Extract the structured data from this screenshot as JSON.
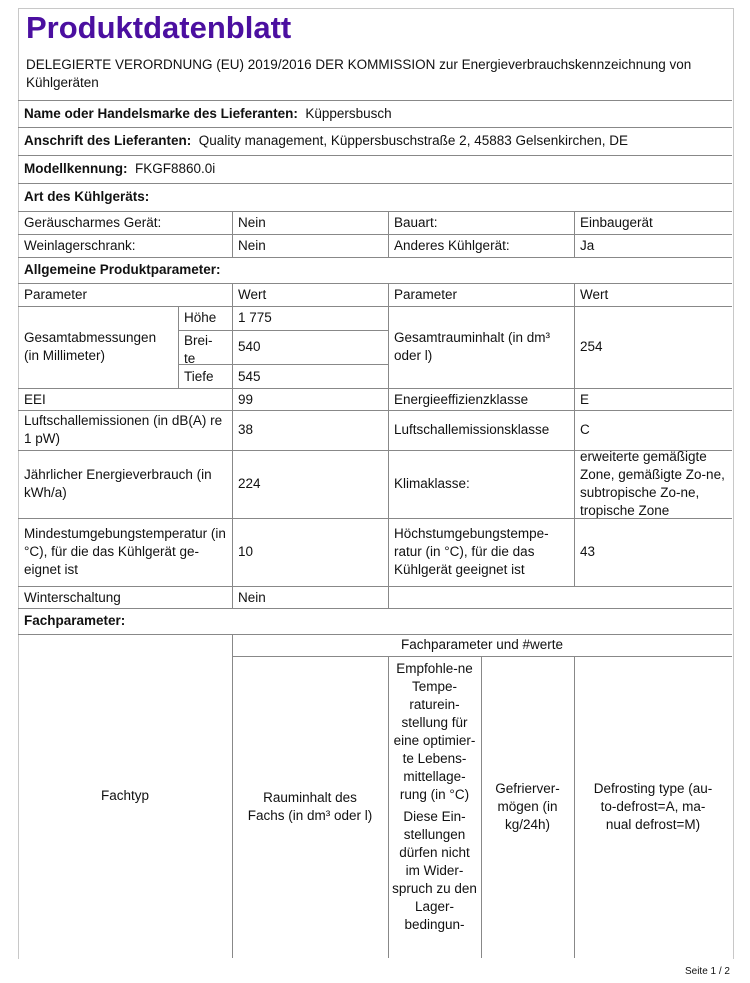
{
  "title": "Produktdatenblatt",
  "regulation": "DELEGIERTE VERORDNUNG (EU) 2019/2016 DER KOMMISSION zur Energieverbrauchskennzeichnung von Kühlgeräten",
  "supplier": {
    "label": "Name oder Handelsmarke des Lieferanten:",
    "value": "Küppersbusch"
  },
  "address": {
    "label": "Anschrift des Lieferanten:",
    "value": "Quality management, Küppersbuschstraße 2, 45883 Gelsenkirchen, DE"
  },
  "model": {
    "label": "Modellkennung:",
    "value": "FKGF8860.0i"
  },
  "type_section": "Art des Kühlgeräts:",
  "type_rows": [
    {
      "l1": "Geräuscharmes Gerät:",
      "v1": "Nein",
      "l2": "Bauart:",
      "v2": "Einbaugerät"
    },
    {
      "l1": "Weinlagerschrank:",
      "v1": "Nein",
      "l2": "Anderes Kühlgerät:",
      "v2": "Ja"
    }
  ],
  "general_section": "Allgemeine Produktparameter:",
  "general": {
    "h_param": "Parameter",
    "h_value": "Wert",
    "dims_label": "Gesamtabmessungen (in Millimeter)",
    "height_label": "Höhe",
    "height": "1 775",
    "width_label": "Brei-te",
    "width": "540",
    "depth_label": "Tiefe",
    "depth": "545",
    "volume_label": "Gesamtrauminhalt (in dm³ oder l)",
    "volume": "254",
    "eei_label": "EEI",
    "eei": "99",
    "eclass_label": "Energieeffizienzklasse",
    "eclass": "E",
    "noise_label": "Luftschallemissionen (in dB(A) re 1 pW)",
    "noise": "38",
    "noiseclass_label": "Luftschallemissionsklasse",
    "noiseclass": "C",
    "energy_label": "Jährlicher Energieverbrauch (in kWh/a)",
    "energy": "224",
    "climate_label": "Klimaklasse:",
    "climate": "erweiterte gemäßigte Zone, gemäßigte Zo-ne, subtropische Zo-ne, tropische Zone",
    "mintemp_label": "Mindestumgebungstemperatur (in °C), für die das Kühlgerät ge-eignet ist",
    "mintemp": "10",
    "maxtemp_label": "Höchstumgebungstempe-ratur (in °C), für die das Kühlgerät geeignet ist",
    "maxtemp": "43",
    "winter_label": "Winterschaltung",
    "winter": "Nein"
  },
  "compartment_section": "Fachparameter:",
  "compartment": {
    "type": "Fachtyp",
    "group": "Fachparameter und #werte",
    "volume": "Rauminhalt des Fachs (in dm³ oder l)",
    "temp": "Empfohle-ne Tempe-raturein-stellung für eine optimier-te Lebens-mittellage-rung (in °C)",
    "temp_note": "Diese Ein-stellungen dürfen nicht im Wider-spruch zu den Lager-bedingun-",
    "freeze": "Gefrierver-mögen (in kg/24h)",
    "defrost": "Defrosting type (au-to-defrost=A, ma-nual defrost=M)"
  },
  "footer": "Seite 1 / 2",
  "colors": {
    "title": "#4b0fa0"
  }
}
